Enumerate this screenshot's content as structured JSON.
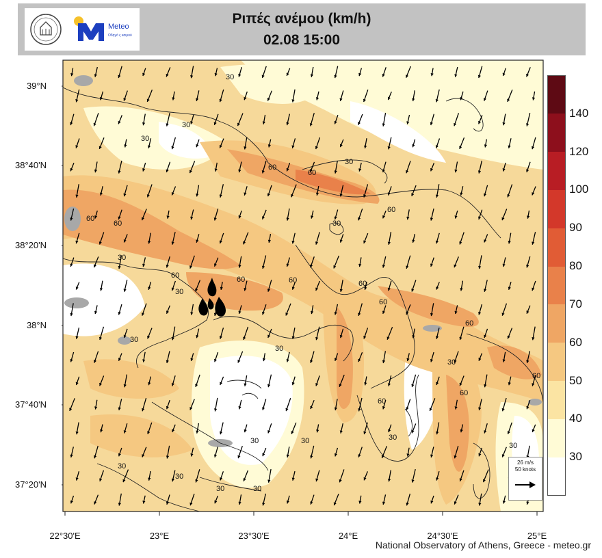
{
  "header": {
    "title": "Ριπές ανέμου (km/h)",
    "datetime": "02.08 15:00",
    "logo_text": "Meteo",
    "logo_subtext": "Οδηγό ς καιρού"
  },
  "map": {
    "lat_labels": [
      "39°N",
      "38°40'N",
      "38°20'N",
      "38°N",
      "37°40'N",
      "37°20'N"
    ],
    "lon_labels": [
      "22°30'E",
      "23°E",
      "23°30'E",
      "24°E",
      "24°30'E",
      "25°E"
    ],
    "contour_labels": [
      "30",
      "60"
    ],
    "wind_direction": "north-north-east to south-south-west",
    "fire_symbol": "fire-icon",
    "reference_vector": {
      "speed": "26 m/s",
      "knots": "50 knots"
    }
  },
  "colorbar": {
    "ticks": [
      "140",
      "120",
      "100",
      "90",
      "80",
      "70",
      "60",
      "50",
      "40",
      "30"
    ],
    "colors": [
      "#ffffff",
      "#fffbd6",
      "#fbe4a3",
      "#f5c881",
      "#efa664",
      "#e9814a",
      "#e15c35",
      "#d3382a",
      "#b81d24",
      "#8d0f1c",
      "#5e0a14"
    ]
  },
  "footer": {
    "credit": "National Observatory of Athens, Greece - meteo.gr"
  }
}
